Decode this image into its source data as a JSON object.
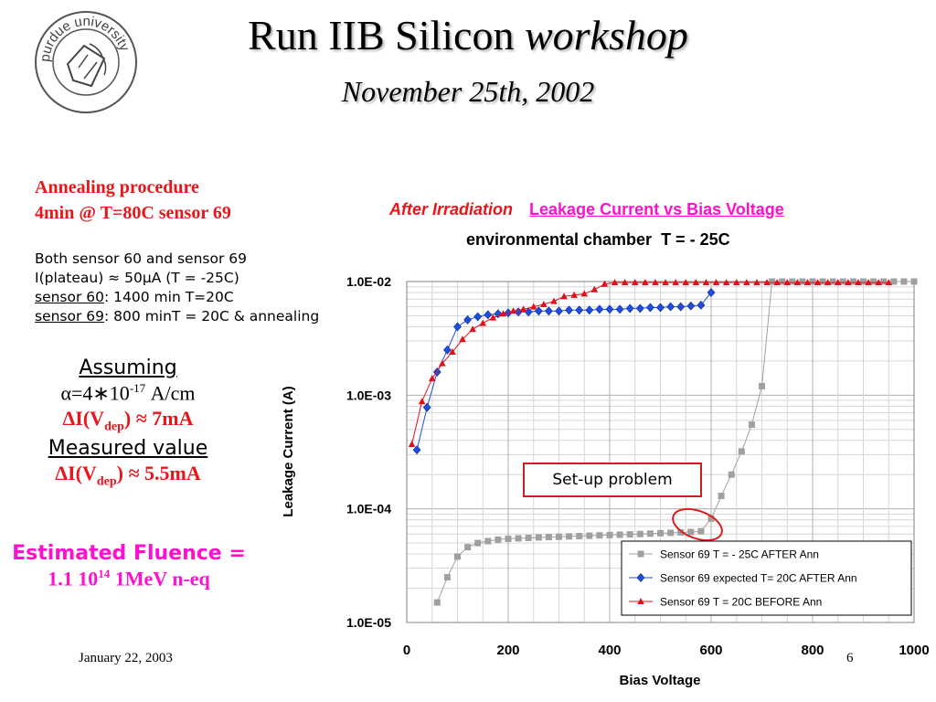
{
  "slide": {
    "title_main": "Run IIB Silicon ",
    "title_italic": "workshop",
    "subtitle": "November 25th, 2002",
    "logo_text": "purdue university",
    "footer_date": "January 22, 2003",
    "page_number": "6"
  },
  "left_panel": {
    "annealing_line1": "Annealing procedure",
    "annealing_line2": "4min @ T=80C sensor 69",
    "notes": {
      "line1": "Both sensor 60 and sensor 69",
      "line2_prefix": "I(plateau) ",
      "line2_approx": "≈",
      "line2_rest": " 50",
      "line2_mu": "μ",
      "line2_suffix": "A (T = -25C)",
      "line3_label": "sensor 60",
      "line3_rest": ": 1400 min T=20C",
      "line4_label": "sensor 69",
      "line4_rest": ": 800 minT = 20C & annealing"
    },
    "assuming_label": "Assuming",
    "alpha_expr": "α=4∗10",
    "alpha_exp": "-17",
    "alpha_unit": " A/cm",
    "delta_i_1_prefix": "ΔI(V",
    "delta_i_1_sub": "dep",
    "delta_i_1_suffix": ") ≈ 7mA",
    "measured_label": "Measured value",
    "delta_i_2_prefix": "ΔI(V",
    "delta_i_2_sub": "dep",
    "delta_i_2_suffix": ") ≈ 5.5mA",
    "fluence_label": "Estimated Fluence =",
    "fluence_value_prefix": "1.1 10",
    "fluence_exp": "14",
    "fluence_value_suffix": " 1MeV n-eq"
  },
  "colors": {
    "red": "#e8161b",
    "pink": "#ff10cf",
    "series_grey": "#a0a0a0",
    "series_blue": "#1f4de0",
    "series_red": "#e0101a"
  },
  "chart_data": {
    "type": "scatter",
    "heading_red": "After Irradiation",
    "heading_pink": "Leakage Current vs Bias Voltage",
    "subtitle": "environmental chamber  T = - 25C",
    "xlabel": "Bias Voltage",
    "ylabel": "Leakage Current (A)",
    "x_ticks": [
      "0",
      "200",
      "400",
      "600",
      "800",
      "1000"
    ],
    "y_ticks": [
      "1.0E-05",
      "1.0E-04",
      "1.0E-03",
      "1.0E-02"
    ],
    "xlim": [
      0,
      1000
    ],
    "ylim": [
      1e-05,
      0.01
    ],
    "y_scale": "log",
    "grid": true,
    "legend_position": "bottom-right",
    "callout": "Set-up problem",
    "series": [
      {
        "name": "Sensor 69 T = - 25C AFTER Ann",
        "color": "#a0a0a0",
        "marker": "square",
        "x": [
          60,
          80,
          100,
          120,
          140,
          160,
          180,
          200,
          220,
          240,
          260,
          280,
          300,
          320,
          340,
          360,
          380,
          400,
          420,
          440,
          460,
          480,
          500,
          520,
          540,
          560,
          580,
          600,
          620,
          640,
          660,
          680,
          700,
          720,
          740,
          760,
          780,
          800,
          820,
          840,
          860,
          880,
          900,
          920,
          940,
          960,
          980,
          1000
        ],
        "y": [
          1.5e-05,
          2.5e-05,
          3.8e-05,
          4.6e-05,
          5e-05,
          5.2e-05,
          5.35e-05,
          5.45e-05,
          5.5e-05,
          5.55e-05,
          5.6e-05,
          5.65e-05,
          5.68e-05,
          5.72e-05,
          5.76e-05,
          5.8e-05,
          5.84e-05,
          5.88e-05,
          5.92e-05,
          5.96e-05,
          6e-05,
          6.05e-05,
          6.1e-05,
          6.15e-05,
          6.2e-05,
          6.25e-05,
          6.35e-05,
          8.2e-05,
          0.00013,
          0.0002,
          0.00032,
          0.00055,
          0.0012,
          0.01,
          0.01,
          0.01,
          0.01,
          0.01,
          0.01,
          0.01,
          0.01,
          0.01,
          0.01,
          0.01,
          0.01,
          0.01,
          0.01,
          0.01
        ]
      },
      {
        "name": "Sensor 69 expected T= 20C AFTER Ann",
        "color": "#1f4de0",
        "marker": "diamond",
        "x": [
          20,
          40,
          60,
          80,
          100,
          120,
          140,
          160,
          180,
          200,
          220,
          240,
          260,
          280,
          300,
          320,
          340,
          360,
          380,
          400,
          420,
          440,
          460,
          480,
          500,
          520,
          540,
          560,
          580,
          600
        ],
        "y": [
          0.00033,
          0.00078,
          0.0016,
          0.0025,
          0.004,
          0.0046,
          0.0049,
          0.0051,
          0.0052,
          0.0053,
          0.0054,
          0.0054,
          0.0055,
          0.0055,
          0.0055,
          0.0056,
          0.0056,
          0.0056,
          0.0057,
          0.0057,
          0.0057,
          0.0058,
          0.0058,
          0.0059,
          0.0059,
          0.006,
          0.006,
          0.0061,
          0.0062,
          0.008
        ]
      },
      {
        "name": "Sensor 69 T = 20C BEFORE Ann",
        "color": "#e0101a",
        "marker": "triangle",
        "x": [
          10,
          30,
          50,
          70,
          90,
          110,
          130,
          150,
          170,
          190,
          210,
          230,
          250,
          270,
          290,
          310,
          330,
          350,
          370,
          390,
          410,
          430,
          450,
          470,
          490,
          510,
          530,
          550,
          570,
          590,
          610,
          630,
          650,
          670,
          690,
          710,
          730,
          750,
          770,
          790,
          810,
          830,
          850,
          870,
          890,
          910,
          930,
          950
        ],
        "y": [
          0.00037,
          0.00088,
          0.0014,
          0.0019,
          0.0024,
          0.0031,
          0.0038,
          0.0043,
          0.0048,
          0.0052,
          0.0055,
          0.0057,
          0.006,
          0.0063,
          0.0067,
          0.0074,
          0.0076,
          0.0078,
          0.0085,
          0.0095,
          0.0098,
          0.0098,
          0.0098,
          0.0098,
          0.0098,
          0.0098,
          0.0098,
          0.0098,
          0.0098,
          0.0098,
          0.0098,
          0.0098,
          0.0098,
          0.0098,
          0.0098,
          0.0098,
          0.0098,
          0.0098,
          0.0098,
          0.0098,
          0.0098,
          0.0098,
          0.0098,
          0.0098,
          0.0098,
          0.0098,
          0.0098,
          0.0098
        ]
      }
    ]
  }
}
